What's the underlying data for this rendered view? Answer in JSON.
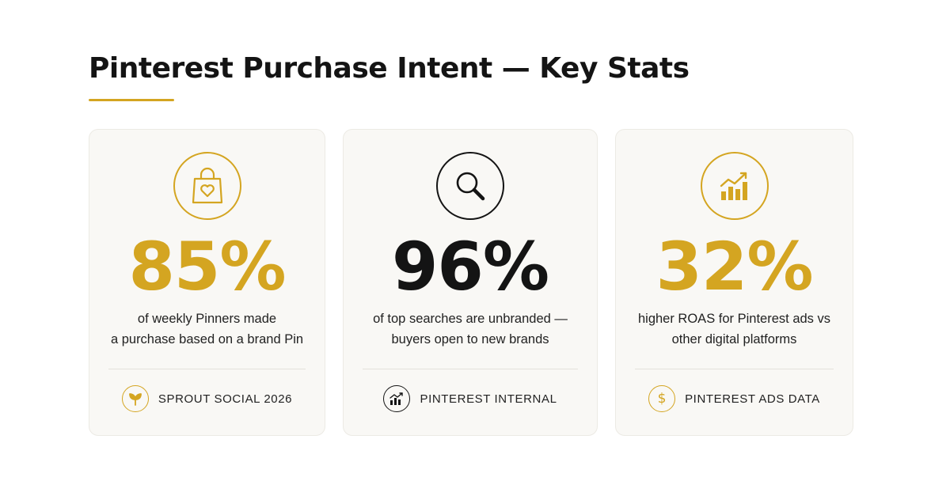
{
  "title": "Pinterest Purchase Intent — Key Stats",
  "colors": {
    "accent": "#d4a521",
    "dark": "#141414",
    "card_bg": "#f9f8f5"
  },
  "cards": [
    {
      "icon": "shopping-bag-heart-icon",
      "stat": "85%",
      "desc_line1": "of weekly Pinners made",
      "desc_line2": "a purchase based on a brand Pin",
      "source_icon": "sprout-icon",
      "source": "SPROUT SOCIAL 2026"
    },
    {
      "icon": "magnifying-glass-icon",
      "stat": "96%",
      "desc_line1": "of top searches are unbranded —",
      "desc_line2": "buyers open to new brands",
      "source_icon": "bar-chart-trend-icon",
      "source": "PINTEREST INTERNAL"
    },
    {
      "icon": "bar-chart-growth-icon",
      "stat": "32%",
      "desc_line1": "higher ROAS for Pinterest ads vs",
      "desc_line2": "other digital platforms",
      "source_icon": "dollar-icon",
      "source": "PINTEREST ADS DATA"
    }
  ]
}
